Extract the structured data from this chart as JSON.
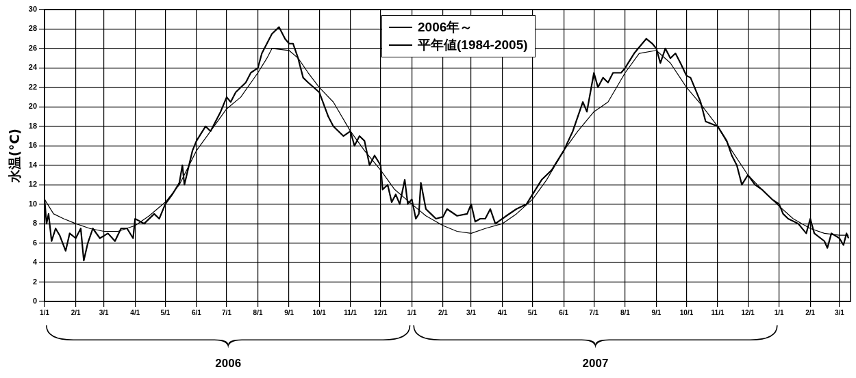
{
  "chart_data": {
    "type": "line",
    "ylabel": "水温(°C)",
    "legend": "top",
    "grid": true,
    "marker": "none",
    "line_style": "solid",
    "xlim": [
      "2006-01-01",
      "2008-03-12"
    ],
    "xticks": [
      {
        "value": "2006-01-01",
        "label": "1/1"
      },
      {
        "value": "2006-02-01",
        "label": "2/1"
      },
      {
        "value": "2006-03-01",
        "label": "3/1"
      },
      {
        "value": "2006-04-01",
        "label": "4/1"
      },
      {
        "value": "2006-05-01",
        "label": "5/1"
      },
      {
        "value": "2006-06-01",
        "label": "6/1"
      },
      {
        "value": "2006-07-01",
        "label": "7/1"
      },
      {
        "value": "2006-08-01",
        "label": "8/1"
      },
      {
        "value": "2006-09-01",
        "label": "9/1"
      },
      {
        "value": "2006-10-01",
        "label": "10/1"
      },
      {
        "value": "2006-11-01",
        "label": "11/1"
      },
      {
        "value": "2006-12-01",
        "label": "12/1"
      },
      {
        "value": "2007-01-01",
        "label": "1/1"
      },
      {
        "value": "2007-02-01",
        "label": "2/1"
      },
      {
        "value": "2007-03-01",
        "label": "3/1"
      },
      {
        "value": "2007-04-01",
        "label": "4/1"
      },
      {
        "value": "2007-05-01",
        "label": "5/1"
      },
      {
        "value": "2007-06-01",
        "label": "6/1"
      },
      {
        "value": "2007-07-01",
        "label": "7/1"
      },
      {
        "value": "2007-08-01",
        "label": "8/1"
      },
      {
        "value": "2007-09-01",
        "label": "9/1"
      },
      {
        "value": "2007-10-01",
        "label": "10/1"
      },
      {
        "value": "2007-11-01",
        "label": "11/1"
      },
      {
        "value": "2007-12-01",
        "label": "12/1"
      },
      {
        "value": "2008-01-01",
        "label": "1/1"
      },
      {
        "value": "2008-02-01",
        "label": "2/1"
      },
      {
        "value": "2008-03-01",
        "label": "3/1"
      }
    ],
    "ylim": [
      0,
      30
    ],
    "yticks": [
      0,
      2,
      4,
      6,
      8,
      10,
      12,
      14,
      16,
      18,
      20,
      22,
      24,
      26,
      28,
      30
    ],
    "annotations": [
      "2006",
      "2007"
    ],
    "series": [
      {
        "name": "2006年～",
        "color": "#000000",
        "x": [
          "2006-01-01",
          "2006-01-03",
          "2006-01-05",
          "2006-01-08",
          "2006-01-12",
          "2006-01-16",
          "2006-01-22",
          "2006-01-26",
          "2006-02-01",
          "2006-02-06",
          "2006-02-09",
          "2006-02-13",
          "2006-02-18",
          "2006-02-25",
          "2006-03-05",
          "2006-03-12",
          "2006-03-18",
          "2006-03-24",
          "2006-03-30",
          "2006-04-01",
          "2006-04-10",
          "2006-04-20",
          "2006-04-25",
          "2006-05-01",
          "2006-05-08",
          "2006-05-15",
          "2006-05-18",
          "2006-05-20",
          "2006-05-28",
          "2006-06-01",
          "2006-06-10",
          "2006-06-15",
          "2006-06-25",
          "2006-07-01",
          "2006-07-05",
          "2006-07-10",
          "2006-07-20",
          "2006-07-25",
          "2006-08-01",
          "2006-08-05",
          "2006-08-10",
          "2006-08-15",
          "2006-08-22",
          "2006-08-28",
          "2006-09-01",
          "2006-09-05",
          "2006-09-10",
          "2006-09-15",
          "2006-09-20",
          "2006-10-01",
          "2006-10-10",
          "2006-10-15",
          "2006-10-25",
          "2006-11-01",
          "2006-11-05",
          "2006-11-10",
          "2006-11-15",
          "2006-11-20",
          "2006-11-25",
          "2006-12-01",
          "2006-12-03",
          "2006-12-08",
          "2006-12-12",
          "2006-12-16",
          "2006-12-20",
          "2006-12-25",
          "2006-12-28",
          "2007-01-01",
          "2007-01-05",
          "2007-01-08",
          "2007-01-10",
          "2007-01-15",
          "2007-01-20",
          "2007-01-25",
          "2007-02-01",
          "2007-02-05",
          "2007-02-15",
          "2007-02-25",
          "2007-03-01",
          "2007-03-05",
          "2007-03-10",
          "2007-03-15",
          "2007-03-20",
          "2007-03-25",
          "2007-04-01",
          "2007-04-05",
          "2007-04-15",
          "2007-04-25",
          "2007-05-01",
          "2007-05-10",
          "2007-05-20",
          "2007-06-01",
          "2007-06-10",
          "2007-06-20",
          "2007-06-24",
          "2007-07-01",
          "2007-07-05",
          "2007-07-10",
          "2007-07-15",
          "2007-07-20",
          "2007-07-28",
          "2007-08-01",
          "2007-08-10",
          "2007-08-18",
          "2007-08-22",
          "2007-08-28",
          "2007-09-01",
          "2007-09-05",
          "2007-09-10",
          "2007-09-15",
          "2007-09-20",
          "2007-09-25",
          "2007-10-01",
          "2007-10-05",
          "2007-10-15",
          "2007-10-20",
          "2007-11-01",
          "2007-11-10",
          "2007-11-15",
          "2007-11-20",
          "2007-11-25",
          "2007-12-01",
          "2007-12-08",
          "2007-12-15",
          "2007-12-20",
          "2007-12-25",
          "2008-01-01",
          "2008-01-05",
          "2008-01-10",
          "2008-01-20",
          "2008-01-28",
          "2008-02-01",
          "2008-02-05",
          "2008-02-15",
          "2008-02-18",
          "2008-02-22",
          "2008-03-01",
          "2008-03-05",
          "2008-03-08",
          "2008-03-10"
        ],
        "values": [
          10.5,
          8,
          9,
          6.2,
          7.5,
          6.8,
          5.2,
          7,
          6.5,
          7.5,
          4.2,
          6,
          7.5,
          6.5,
          7,
          6.2,
          7.5,
          7.5,
          6.5,
          8.5,
          8,
          9,
          8.5,
          10,
          11,
          12.2,
          14,
          12,
          15.5,
          16.5,
          18,
          17.5,
          19.5,
          21,
          20.5,
          21.5,
          22.5,
          23.5,
          24,
          25.5,
          26.5,
          27.5,
          28.2,
          27,
          26.5,
          26.5,
          25,
          23,
          22.5,
          21.5,
          19,
          18,
          17,
          17.5,
          16,
          17,
          16.5,
          14,
          15,
          14,
          11.5,
          12,
          10.2,
          11,
          10,
          12.5,
          10,
          10.5,
          8.5,
          9,
          12.2,
          9.5,
          9,
          8.5,
          8.7,
          9.5,
          8.8,
          9,
          10,
          8.2,
          8.5,
          8.5,
          9.5,
          8,
          8.5,
          8.8,
          9.5,
          10,
          11,
          12.5,
          13.5,
          15.5,
          17.5,
          20.5,
          19.5,
          23.5,
          22,
          23,
          22.5,
          23.5,
          23.5,
          24,
          25.5,
          26.5,
          27,
          26.5,
          26,
          24.5,
          26,
          25,
          25.5,
          24.5,
          23.2,
          23,
          20.5,
          18.5,
          18,
          16.5,
          15,
          14,
          12,
          13,
          12,
          11.5,
          11,
          10.5,
          10,
          9,
          8.5,
          8,
          7,
          8.5,
          7,
          6.2,
          5.5,
          7,
          6.5,
          5.8,
          7,
          6.5
        ]
      },
      {
        "name": "平年値(1984-2005)",
        "color": "#000000",
        "x": [
          "2006-01-01",
          "2006-01-10",
          "2006-01-20",
          "2006-02-01",
          "2006-02-15",
          "2006-03-01",
          "2006-03-15",
          "2006-04-01",
          "2006-04-15",
          "2006-05-01",
          "2006-05-15",
          "2006-06-01",
          "2006-06-15",
          "2006-07-01",
          "2006-07-15",
          "2006-08-01",
          "2006-08-10",
          "2006-08-15",
          "2006-09-01",
          "2006-09-10",
          "2006-09-20",
          "2006-10-01",
          "2006-10-15",
          "2006-11-01",
          "2006-11-15",
          "2006-12-01",
          "2006-12-15",
          "2007-01-01",
          "2007-01-15",
          "2007-02-01",
          "2007-02-15",
          "2007-03-01",
          "2007-03-15",
          "2007-04-01",
          "2007-04-15",
          "2007-05-01",
          "2007-05-15",
          "2007-06-01",
          "2007-06-15",
          "2007-07-01",
          "2007-07-15",
          "2007-08-01",
          "2007-08-15",
          "2007-09-01",
          "2007-09-15",
          "2007-10-01",
          "2007-10-15",
          "2007-11-01",
          "2007-11-15",
          "2007-12-01",
          "2007-12-15",
          "2008-01-01",
          "2008-01-15",
          "2008-02-01",
          "2008-02-15",
          "2008-03-01",
          "2008-03-10"
        ],
        "values": [
          10.5,
          9,
          8.5,
          8,
          7.5,
          7.2,
          7.2,
          7.8,
          8.8,
          10.2,
          12,
          15.5,
          17.5,
          19.8,
          21,
          23.5,
          25,
          26,
          25.8,
          25,
          23.5,
          22,
          20.5,
          17.5,
          15.5,
          13.5,
          11.5,
          10,
          8.8,
          7.8,
          7.2,
          7,
          7.5,
          8,
          9,
          10.5,
          12.5,
          15.5,
          17.5,
          19.5,
          20.5,
          23.5,
          25.5,
          25.8,
          24.5,
          22,
          20.3,
          18,
          15.5,
          13,
          11.5,
          9.8,
          8.5,
          7.5,
          7,
          6.8,
          6.8
        ]
      }
    ]
  }
}
